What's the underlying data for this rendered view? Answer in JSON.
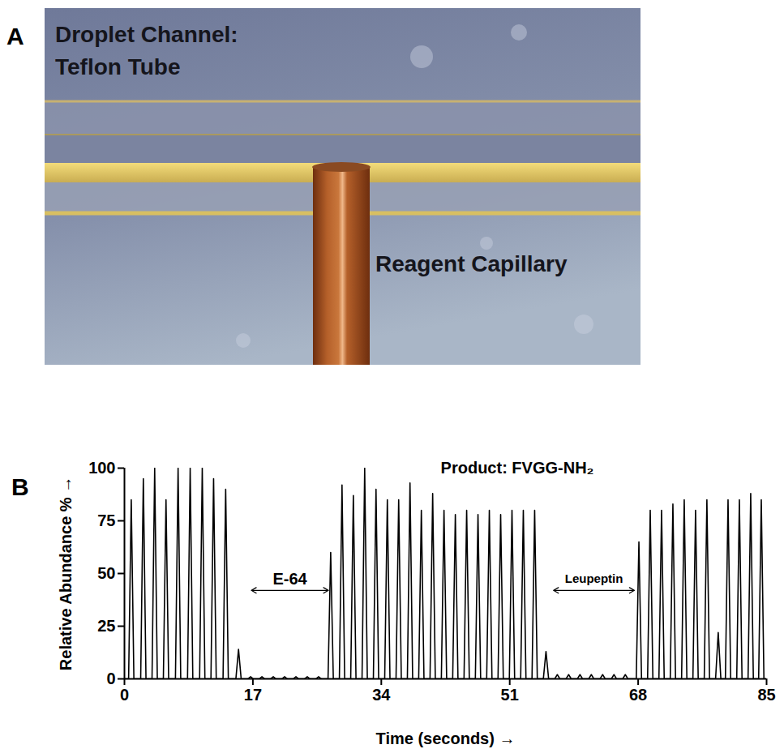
{
  "panel_a": {
    "letter": "A",
    "channel_label": [
      "Droplet Channel:",
      "Teflon Tube"
    ],
    "capillary_label": "Reagent Capillary"
  },
  "panel_b": {
    "letter": "B"
  },
  "chart_data": {
    "type": "line",
    "x_label": "Time (seconds)",
    "y_label": "Relative Abundance %",
    "xlim": [
      0,
      85
    ],
    "xticks": [
      0,
      17,
      34,
      51,
      68,
      85
    ],
    "ylim": [
      0,
      100
    ],
    "yticks": [
      0,
      25,
      50,
      75,
      100
    ],
    "grid": false,
    "annotations": [
      {
        "text": "Product: FVGG-NH₂",
        "x": 52,
        "y": 100
      },
      {
        "text": "E-64",
        "from": 16.8,
        "to": 27,
        "y": 42
      },
      {
        "text": "Leupeptin",
        "from": 56.8,
        "to": 67.5,
        "y": 42
      }
    ],
    "x": [
      0,
      0.55,
      0.9,
      1.25,
      2.15,
      2.5,
      2.85,
      3.65,
      4.0,
      4.35,
      5.15,
      5.5,
      5.85,
      6.75,
      7.1,
      7.45,
      8.35,
      8.7,
      9.05,
      9.95,
      10.3,
      10.65,
      11.45,
      11.8,
      12.15,
      13.05,
      13.4,
      13.75,
      14.75,
      15.1,
      15.45,
      16.35,
      16.7,
      17.05,
      17.85,
      18.2,
      18.55,
      19.35,
      19.7,
      20.05,
      20.85,
      21.2,
      21.55,
      22.35,
      22.7,
      23.05,
      23.85,
      24.2,
      24.55,
      25.35,
      25.7,
      26.05,
      26.95,
      27.3,
      27.65,
      28.45,
      28.8,
      29.15,
      29.95,
      30.3,
      30.65,
      31.45,
      31.8,
      32.15,
      32.95,
      33.3,
      33.65,
      34.45,
      34.8,
      35.15,
      35.95,
      36.3,
      36.65,
      37.45,
      37.8,
      38.15,
      38.95,
      39.3,
      39.65,
      40.45,
      40.8,
      41.15,
      41.95,
      42.3,
      42.65,
      43.45,
      43.8,
      44.15,
      44.95,
      45.3,
      45.65,
      46.45,
      46.8,
      47.15,
      47.95,
      48.3,
      48.65,
      49.45,
      49.8,
      50.15,
      50.95,
      51.3,
      51.65,
      52.45,
      52.8,
      53.15,
      53.95,
      54.3,
      54.65,
      55.45,
      55.8,
      56.15,
      56.95,
      57.3,
      57.65,
      58.45,
      58.8,
      59.15,
      59.95,
      60.3,
      60.65,
      61.45,
      61.8,
      62.15,
      62.95,
      63.3,
      63.65,
      64.45,
      64.8,
      65.15,
      65.95,
      66.3,
      66.65,
      67.75,
      68.1,
      68.45,
      69.25,
      69.6,
      69.95,
      70.75,
      71.1,
      71.45,
      72.25,
      72.6,
      72.95,
      73.75,
      74.1,
      74.45,
      75.25,
      75.6,
      75.95,
      76.75,
      77.1,
      77.45,
      78.25,
      78.6,
      78.95,
      79.55,
      79.9,
      80.25,
      81.05,
      81.4,
      81.75,
      82.55,
      82.9,
      83.25,
      83.95,
      84.3,
      84.65,
      85
    ],
    "series": [
      {
        "color": "#000000",
        "values": [
          0,
          0,
          85,
          0,
          0,
          95,
          0,
          0,
          100,
          0,
          0,
          85,
          0,
          0,
          100,
          0,
          0,
          100,
          0,
          0,
          100,
          0,
          0,
          95,
          0,
          0,
          90,
          0,
          0,
          14,
          0,
          0,
          1,
          0,
          0,
          1,
          0,
          0,
          1,
          0,
          0,
          1,
          0,
          0,
          1,
          0,
          0,
          1,
          0,
          0,
          1,
          0,
          0,
          60,
          0,
          0,
          92,
          0,
          0,
          87,
          0,
          0,
          100,
          0,
          0,
          90,
          0,
          0,
          85,
          0,
          0,
          85,
          0,
          0,
          93,
          0,
          0,
          80,
          0,
          0,
          88,
          0,
          0,
          80,
          0,
          0,
          78,
          0,
          0,
          80,
          0,
          0,
          78,
          0,
          0,
          80,
          0,
          0,
          78,
          0,
          0,
          80,
          0,
          0,
          80,
          0,
          0,
          80,
          0,
          0,
          13,
          0,
          0,
          2,
          0,
          0,
          2,
          0,
          0,
          2,
          0,
          0,
          2,
          0,
          0,
          2,
          0,
          0,
          2,
          0,
          0,
          2,
          0,
          0,
          65,
          0,
          0,
          80,
          0,
          0,
          80,
          0,
          0,
          83,
          0,
          0,
          85,
          0,
          0,
          80,
          0,
          0,
          85,
          0,
          0,
          22,
          0,
          0,
          85,
          0,
          0,
          85,
          0,
          0,
          88,
          0,
          0,
          85,
          0,
          0
        ]
      }
    ]
  }
}
